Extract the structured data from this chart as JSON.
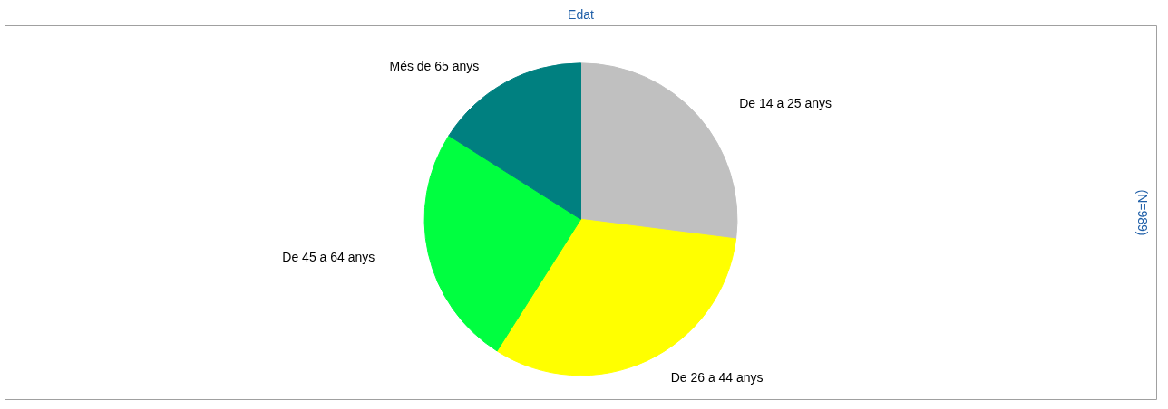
{
  "chart_data": {
    "type": "pie",
    "title": "Edat",
    "categories": [
      "De 14 a 25 anys",
      "De 26 a 44 anys",
      "De 45 a 64 anys",
      "Més de 65 anys"
    ],
    "values": [
      27,
      32,
      25,
      16
    ],
    "colors": [
      "#c0c0c0",
      "#ffff00",
      "#00ff40",
      "#008080"
    ],
    "annotations": [
      "(N=989)"
    ]
  }
}
